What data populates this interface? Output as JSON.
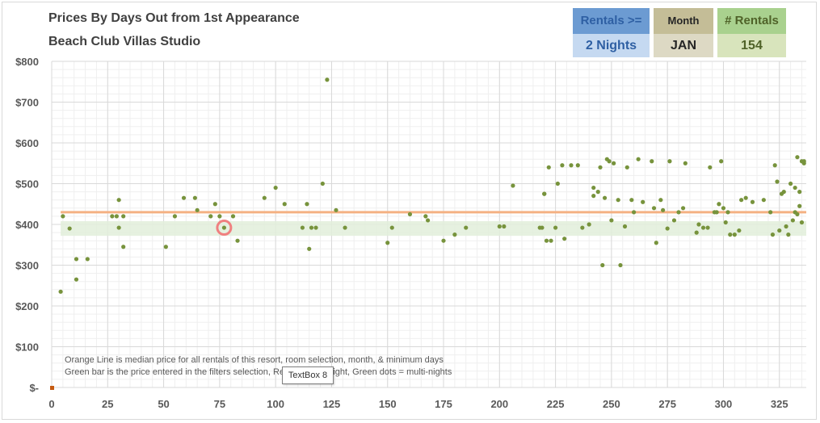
{
  "header": {
    "title": "Prices By Days Out from 1st Appearance",
    "subtitle": "Beach Club Villas Studio"
  },
  "filters": {
    "rentals": {
      "label": "Rentals >=",
      "value": "2 Nights",
      "header_bg": "#6c9bd2",
      "value_bg": "#c5d9f1",
      "color": "#2e5fa3"
    },
    "month": {
      "label": "Month",
      "value": "JAN",
      "header_bg": "#c4bd97",
      "value_bg": "#ddd9c4",
      "color": "#262626"
    },
    "count": {
      "label": "# Rentals",
      "value": "154",
      "header_bg": "#a9d18e",
      "value_bg": "#d8e4bc",
      "color": "#4f6228"
    }
  },
  "textbox": {
    "label": "TextBox 8"
  },
  "chart_data": {
    "type": "scatter",
    "xlim": [
      0,
      337
    ],
    "ylim": [
      0,
      800
    ],
    "x_ticks": [
      0,
      25,
      50,
      75,
      100,
      125,
      150,
      175,
      200,
      225,
      250,
      275,
      300,
      325
    ],
    "y_ticks": [
      0,
      100,
      200,
      300,
      400,
      500,
      600,
      700,
      800
    ],
    "y_tick_labels": [
      "$-",
      "$100",
      "$200",
      "$300",
      "$400",
      "$500",
      "$600",
      "$700",
      "$800"
    ],
    "grid": true,
    "median_price": 430,
    "median_color": "#f4b183",
    "band": [
      372,
      408
    ],
    "band_color": "#e2efda",
    "point_color": "#77933c",
    "highlight": {
      "x": 77,
      "y": 392,
      "color": "#f08080"
    },
    "origin_marker": {
      "x": 0,
      "y": 0,
      "color": "#c55a11"
    },
    "notes": [
      "Orange Line is median price for all rentals of this resort, room selection, month, & minimum days",
      "Green bar is the price entered in the filters selection, Red Dots = 1-night, Green dots = multi-nights"
    ],
    "points": [
      [
        4,
        235
      ],
      [
        5,
        420
      ],
      [
        8,
        390
      ],
      [
        11,
        315
      ],
      [
        11,
        265
      ],
      [
        16,
        315
      ],
      [
        27,
        420
      ],
      [
        29,
        420
      ],
      [
        30,
        460
      ],
      [
        30,
        392
      ],
      [
        32,
        420
      ],
      [
        32,
        345
      ],
      [
        51,
        345
      ],
      [
        55,
        420
      ],
      [
        59,
        465
      ],
      [
        64,
        465
      ],
      [
        65,
        435
      ],
      [
        71,
        420
      ],
      [
        73,
        450
      ],
      [
        75,
        420
      ],
      [
        77,
        392
      ],
      [
        81,
        420
      ],
      [
        83,
        360
      ],
      [
        95,
        465
      ],
      [
        100,
        490
      ],
      [
        104,
        450
      ],
      [
        112,
        392
      ],
      [
        114,
        450
      ],
      [
        115,
        340
      ],
      [
        116,
        392
      ],
      [
        118,
        392
      ],
      [
        121,
        500
      ],
      [
        123,
        755
      ],
      [
        127,
        435
      ],
      [
        131,
        392
      ],
      [
        150,
        355
      ],
      [
        152,
        392
      ],
      [
        160,
        425
      ],
      [
        167,
        420
      ],
      [
        168,
        410
      ],
      [
        175,
        360
      ],
      [
        180,
        375
      ],
      [
        185,
        392
      ],
      [
        200,
        395
      ],
      [
        202,
        395
      ],
      [
        206,
        495
      ],
      [
        218,
        392
      ],
      [
        219,
        392
      ],
      [
        220,
        475
      ],
      [
        220,
        475
      ],
      [
        221,
        360
      ],
      [
        222,
        540
      ],
      [
        223,
        360
      ],
      [
        225,
        392
      ],
      [
        226,
        500
      ],
      [
        228,
        545
      ],
      [
        229,
        365
      ],
      [
        232,
        545
      ],
      [
        235,
        545
      ],
      [
        237,
        392
      ],
      [
        240,
        400
      ],
      [
        242,
        490
      ],
      [
        242,
        470
      ],
      [
        244,
        480
      ],
      [
        245,
        540
      ],
      [
        246,
        300
      ],
      [
        247,
        465
      ],
      [
        248,
        560
      ],
      [
        249,
        555
      ],
      [
        250,
        410
      ],
      [
        251,
        550
      ],
      [
        253,
        460
      ],
      [
        254,
        300
      ],
      [
        256,
        395
      ],
      [
        257,
        540
      ],
      [
        259,
        460
      ],
      [
        260,
        430
      ],
      [
        262,
        560
      ],
      [
        264,
        455
      ],
      [
        268,
        555
      ],
      [
        269,
        440
      ],
      [
        270,
        355
      ],
      [
        272,
        460
      ],
      [
        273,
        435
      ],
      [
        275,
        390
      ],
      [
        276,
        555
      ],
      [
        278,
        410
      ],
      [
        280,
        430
      ],
      [
        282,
        440
      ],
      [
        283,
        550
      ],
      [
        288,
        380
      ],
      [
        289,
        400
      ],
      [
        291,
        392
      ],
      [
        293,
        392
      ],
      [
        294,
        540
      ],
      [
        296,
        430
      ],
      [
        297,
        430
      ],
      [
        298,
        450
      ],
      [
        299,
        555
      ],
      [
        300,
        440
      ],
      [
        301,
        405
      ],
      [
        302,
        430
      ],
      [
        303,
        375
      ],
      [
        305,
        375
      ],
      [
        307,
        385
      ],
      [
        308,
        460
      ],
      [
        310,
        465
      ],
      [
        313,
        455
      ],
      [
        318,
        460
      ],
      [
        321,
        430
      ],
      [
        322,
        375
      ],
      [
        323,
        545
      ],
      [
        324,
        505
      ],
      [
        325,
        385
      ],
      [
        326,
        475
      ],
      [
        327,
        480
      ],
      [
        328,
        395
      ],
      [
        329,
        375
      ],
      [
        330,
        500
      ],
      [
        331,
        410
      ],
      [
        332,
        490
      ],
      [
        332,
        430
      ],
      [
        333,
        425
      ],
      [
        333,
        565
      ],
      [
        334,
        445
      ],
      [
        334,
        480
      ],
      [
        335,
        405
      ],
      [
        335,
        555
      ],
      [
        336,
        550
      ],
      [
        336,
        555
      ]
    ]
  }
}
